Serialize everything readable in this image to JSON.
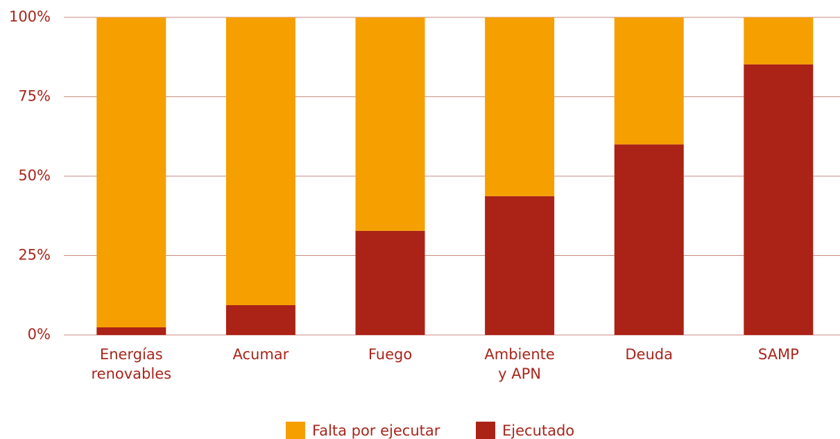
{
  "chart_data": {
    "type": "stacked_bar",
    "categories": [
      "Energías\nrenovables",
      "Acumar",
      "Fuego",
      "Ambiente\ny APN",
      "Deuda",
      "SAMP"
    ],
    "series": [
      {
        "name": "Ejecutado",
        "color": "#ab2217",
        "values": [
          2.4,
          9.4,
          32.8,
          43.7,
          60,
          85.2
        ]
      },
      {
        "name": "Falta por ejecutar",
        "color": "#f5a000",
        "values": [
          97.6,
          90.6,
          67.2,
          56.3,
          40,
          14.8
        ]
      }
    ],
    "ylim": [
      0,
      100
    ],
    "yticks": [
      {
        "value": 0,
        "label": "0%"
      },
      {
        "value": 25,
        "label": "25%"
      },
      {
        "value": 50,
        "label": "50%"
      },
      {
        "value": 75,
        "label": "75%"
      },
      {
        "value": 100,
        "label": "100%"
      }
    ],
    "grid": true,
    "legend": "bottom"
  }
}
